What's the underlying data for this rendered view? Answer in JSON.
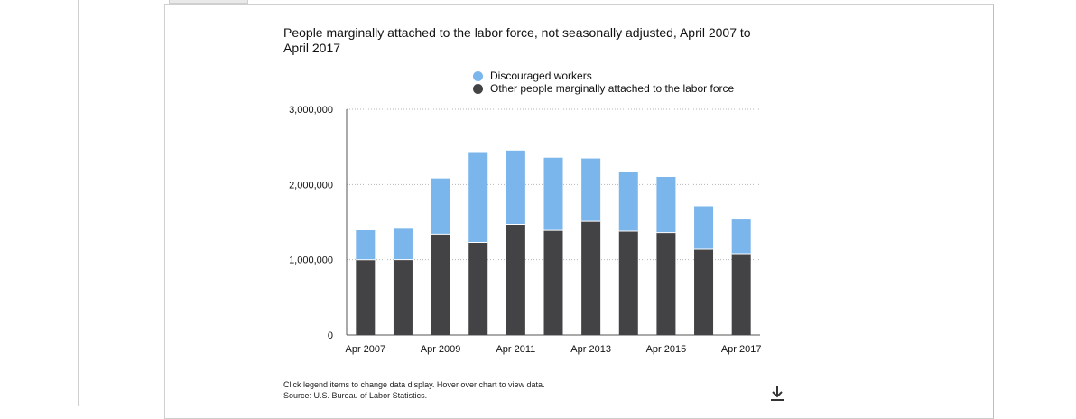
{
  "chart_data": {
    "type": "bar",
    "stacked": true,
    "title": "People marginally attached to the labor force, not seasonally adjusted, April 2007 to April 2017",
    "categories": [
      "Apr 2007",
      "Apr 2008",
      "Apr 2009",
      "Apr 2010",
      "Apr 2011",
      "Apr 2012",
      "Apr 2013",
      "Apr 2014",
      "Apr 2015",
      "Apr 2016",
      "Apr 2017"
    ],
    "x_tick_labels": [
      "Apr 2007",
      "Apr 2009",
      "Apr 2011",
      "Apr 2013",
      "Apr 2015",
      "Apr 2017"
    ],
    "series": [
      {
        "name": "Other people marginally attached to the labor force",
        "color": "#434244",
        "values": [
          999000,
          1000000,
          1340000,
          1230000,
          1470000,
          1390000,
          1510000,
          1380000,
          1360000,
          1140000,
          1080000
        ]
      },
      {
        "name": "Discouraged workers",
        "color": "#7ab5ec",
        "values": [
          393000,
          412000,
          740000,
          1200000,
          980000,
          965000,
          835000,
          780000,
          740000,
          570000,
          455000
        ]
      }
    ],
    "ylim": [
      0,
      3000000
    ],
    "y_ticks": [
      0,
      1000000,
      2000000,
      3000000
    ],
    "y_tick_labels": [
      "0",
      "1,000,000",
      "2,000,000",
      "3,000,000"
    ],
    "xlabel": "",
    "ylabel": "",
    "grid": "dotted horizontal",
    "legend_placement": "top-center"
  },
  "legend": {
    "discouraged": "Discouraged workers",
    "other": "Other people marginally attached to the labor force"
  },
  "footer": {
    "instructions": "Click legend items to change data display. Hover over chart to view data.",
    "source": "Source: U.S. Bureau of Labor Statistics."
  },
  "icons": {
    "download": "download-icon"
  }
}
